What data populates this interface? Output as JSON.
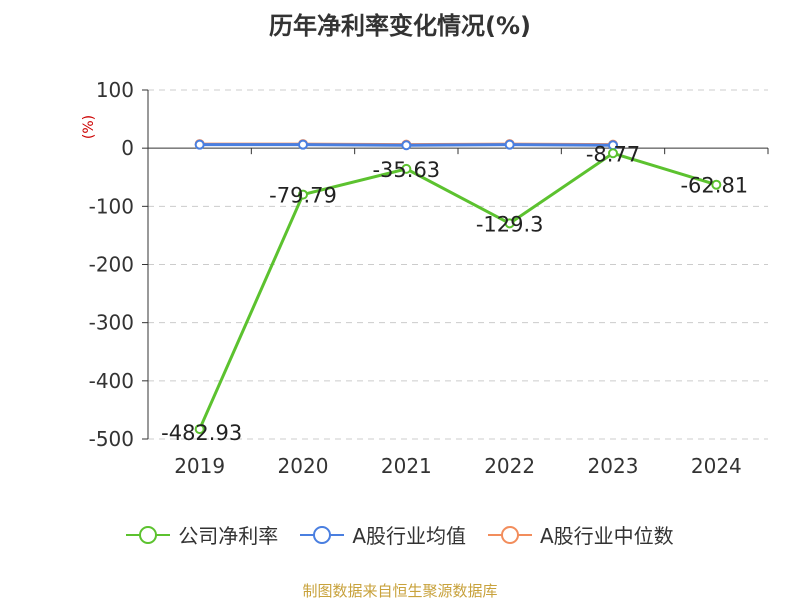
{
  "title": "历年净利率变化情况(%)",
  "source": "制图数据来自恒生聚源数据库",
  "chart_data": {
    "type": "line",
    "ylabel": "(%)",
    "ylim": [
      -500,
      100
    ],
    "yticks": [
      100,
      0,
      -100,
      -200,
      -300,
      -400,
      -500
    ],
    "categories": [
      "2019",
      "2020",
      "2021",
      "2022",
      "2023",
      "2024"
    ],
    "grid": true,
    "legend_position": "bottom",
    "series": [
      {
        "name": "公司净利率",
        "color": "#5cc22f",
        "values": [
          -482.93,
          -79.79,
          -35.63,
          -129.3,
          -8.77,
          -62.81
        ],
        "labels": [
          "-482.93",
          "-79.79",
          "-35.63",
          "-129.3",
          "-8.77",
          "-62.81"
        ]
      },
      {
        "name": "A股行业均值",
        "color": "#4a7fe0",
        "values": [
          6.0,
          6.0,
          5.0,
          6.0,
          5.0,
          null
        ]
      },
      {
        "name": "A股行业中位数",
        "color": "#f28d5c",
        "values": [
          7.0,
          7.0,
          6.0,
          7.0,
          6.0,
          null
        ]
      }
    ]
  }
}
